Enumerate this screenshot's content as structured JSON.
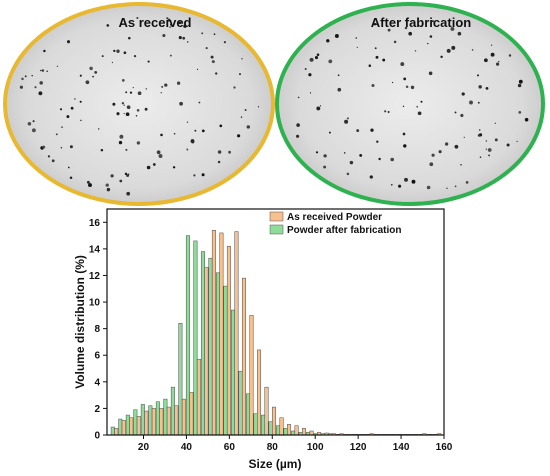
{
  "micrographs": [
    {
      "label": "As received",
      "border_color": "#e8b830"
    },
    {
      "label": "After fabrication",
      "border_color": "#2db24f"
    }
  ],
  "chart_data": {
    "type": "bar",
    "xlabel": "Size (µm)",
    "ylabel": "Volume distribution (%)",
    "xlim": [
      3,
      160
    ],
    "ylim": [
      0,
      17
    ],
    "x_ticks": [
      20,
      40,
      60,
      80,
      100,
      120,
      140,
      160
    ],
    "y_ticks": [
      0,
      2,
      4,
      6,
      8,
      10,
      12,
      14,
      16
    ],
    "legend_position": "top-right",
    "x": [
      6.5,
      10,
      13.5,
      17,
      20.5,
      24,
      27.5,
      31,
      34.5,
      38,
      41.5,
      45,
      48.5,
      52,
      55.5,
      59,
      62.5,
      66,
      69.5,
      73,
      76.5,
      80,
      83.5,
      87,
      90.5,
      94,
      97.5,
      101,
      104.5,
      108,
      111.5,
      115,
      118.5,
      122,
      125.5,
      129,
      132.5,
      136,
      139.5,
      143,
      146.5,
      150,
      153.5,
      157
    ],
    "series": [
      {
        "name": "As received Powder",
        "color": "#f7c08f",
        "values": [
          0.5,
          1.1,
          1.3,
          1.4,
          1.8,
          2.0,
          2.0,
          2.1,
          2.2,
          2.7,
          3.2,
          5.7,
          12.6,
          15.4,
          15.2,
          14.2,
          15.3,
          11.8,
          9.0,
          6.4,
          3.6,
          2.1,
          1.3,
          0.8,
          0.7,
          0.5,
          0.3,
          0.2,
          0.15,
          0.1,
          0.1,
          0.05,
          0.05,
          0.05,
          0.1,
          0.05,
          0.05,
          0.05,
          0.05,
          0.05,
          0.05,
          0.1,
          0.05,
          0.1
        ]
      },
      {
        "name": "Powder after fabrication",
        "color": "#8fdc9a",
        "values": [
          0.6,
          1.2,
          1.5,
          1.9,
          2.3,
          2.2,
          2.5,
          2.7,
          3.6,
          8.4,
          15.0,
          14.6,
          13.8,
          13.3,
          12.2,
          11.2,
          9.4,
          4.8,
          3.1,
          1.6,
          1.5,
          1.0,
          0.7,
          0.5,
          0.3,
          0.2,
          0.2,
          0.1,
          0.1,
          0.1,
          0.05,
          0.05,
          0.05,
          0.05,
          0.05,
          0.05,
          0.05,
          0.05,
          0.05,
          0.05,
          0.05,
          0.05,
          0.05,
          0.05
        ]
      }
    ]
  }
}
